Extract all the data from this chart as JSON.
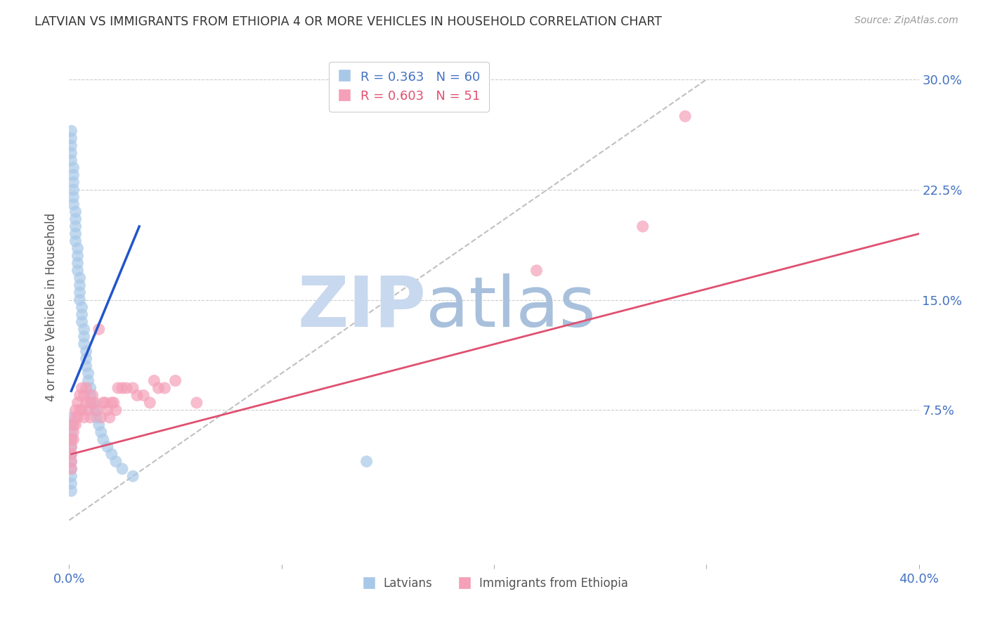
{
  "title": "LATVIAN VS IMMIGRANTS FROM ETHIOPIA 4 OR MORE VEHICLES IN HOUSEHOLD CORRELATION CHART",
  "source": "Source: ZipAtlas.com",
  "ylabel": "4 or more Vehicles in Household",
  "x_min": 0.0,
  "x_max": 0.4,
  "y_min": -0.03,
  "y_max": 0.32,
  "y_ticks": [
    0.075,
    0.15,
    0.225,
    0.3
  ],
  "y_tick_labels": [
    "7.5%",
    "15.0%",
    "22.5%",
    "30.0%"
  ],
  "x_tick_labels_show": [
    "0.0%",
    "40.0%"
  ],
  "x_tick_positions_show": [
    0.0,
    0.4
  ],
  "grid_color": "#cccccc",
  "background_color": "#ffffff",
  "title_color": "#333333",
  "axis_tick_color": "#4472c4",
  "legend_r1": "R = 0.363",
  "legend_n1": "N = 60",
  "legend_r2": "R = 0.603",
  "legend_n2": "N = 51",
  "legend_label1": "Latvians",
  "legend_label2": "Immigrants from Ethiopia",
  "color_blue": "#a8c8e8",
  "color_pink": "#f4a0b8",
  "color_blue_line": "#2255cc",
  "color_pink_line": "#e05070",
  "color_diag": "#c0c0c0",
  "watermark_zip": "ZIP",
  "watermark_atlas": "atlas",
  "watermark_color_zip": "#c8d8ee",
  "watermark_color_atlas": "#a8c0dc",
  "latvians_x": [
    0.001,
    0.001,
    0.001,
    0.001,
    0.001,
    0.002,
    0.002,
    0.002,
    0.002,
    0.002,
    0.002,
    0.003,
    0.003,
    0.003,
    0.003,
    0.003,
    0.004,
    0.004,
    0.004,
    0.004,
    0.005,
    0.005,
    0.005,
    0.005,
    0.006,
    0.006,
    0.006,
    0.007,
    0.007,
    0.007,
    0.008,
    0.008,
    0.008,
    0.009,
    0.009,
    0.01,
    0.01,
    0.011,
    0.012,
    0.013,
    0.014,
    0.015,
    0.016,
    0.018,
    0.02,
    0.022,
    0.025,
    0.03,
    0.001,
    0.001,
    0.001,
    0.001,
    0.001,
    0.001,
    0.001,
    0.001,
    0.001,
    0.001,
    0.001,
    0.14
  ],
  "latvians_y": [
    0.265,
    0.26,
    0.255,
    0.25,
    0.245,
    0.24,
    0.235,
    0.23,
    0.225,
    0.22,
    0.215,
    0.21,
    0.205,
    0.2,
    0.195,
    0.19,
    0.185,
    0.18,
    0.175,
    0.17,
    0.165,
    0.16,
    0.155,
    0.15,
    0.145,
    0.14,
    0.135,
    0.13,
    0.125,
    0.12,
    0.115,
    0.11,
    0.105,
    0.1,
    0.095,
    0.09,
    0.085,
    0.08,
    0.075,
    0.07,
    0.065,
    0.06,
    0.055,
    0.05,
    0.045,
    0.04,
    0.035,
    0.03,
    0.07,
    0.065,
    0.06,
    0.055,
    0.05,
    0.045,
    0.04,
    0.035,
    0.03,
    0.025,
    0.02,
    0.04
  ],
  "ethiopia_x": [
    0.001,
    0.001,
    0.001,
    0.001,
    0.001,
    0.002,
    0.002,
    0.002,
    0.003,
    0.003,
    0.003,
    0.004,
    0.004,
    0.005,
    0.005,
    0.006,
    0.006,
    0.007,
    0.007,
    0.008,
    0.008,
    0.009,
    0.01,
    0.01,
    0.011,
    0.012,
    0.013,
    0.014,
    0.015,
    0.016,
    0.017,
    0.018,
    0.019,
    0.02,
    0.021,
    0.022,
    0.023,
    0.025,
    0.027,
    0.03,
    0.032,
    0.035,
    0.038,
    0.04,
    0.042,
    0.045,
    0.05,
    0.06,
    0.22,
    0.27,
    0.29
  ],
  "ethiopia_y": [
    0.055,
    0.05,
    0.045,
    0.04,
    0.035,
    0.065,
    0.06,
    0.055,
    0.075,
    0.07,
    0.065,
    0.08,
    0.07,
    0.085,
    0.075,
    0.09,
    0.075,
    0.085,
    0.07,
    0.09,
    0.08,
    0.075,
    0.08,
    0.07,
    0.085,
    0.08,
    0.075,
    0.13,
    0.07,
    0.08,
    0.08,
    0.075,
    0.07,
    0.08,
    0.08,
    0.075,
    0.09,
    0.09,
    0.09,
    0.09,
    0.085,
    0.085,
    0.08,
    0.095,
    0.09,
    0.09,
    0.095,
    0.08,
    0.17,
    0.2,
    0.275
  ],
  "blue_line_x": [
    0.001,
    0.033
  ],
  "blue_line_y": [
    0.088,
    0.2
  ],
  "pink_line_x": [
    0.001,
    0.4
  ],
  "pink_line_y": [
    0.045,
    0.195
  ],
  "diag_line_x": [
    0.0,
    0.3
  ],
  "diag_line_y": [
    0.0,
    0.3
  ]
}
